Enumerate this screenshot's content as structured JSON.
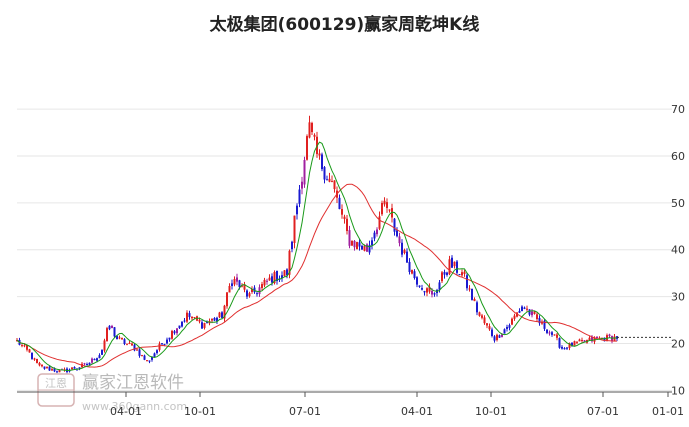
{
  "chart_data": {
    "type": "candlestick",
    "title": "太极集团(600129)赢家周乾坤K线",
    "y_axis": {
      "position": "right",
      "ticks": [
        10,
        20,
        30,
        40,
        50,
        60,
        70
      ],
      "range": [
        9,
        73
      ]
    },
    "x_axis": {
      "ticks": [
        "04-01",
        "10-01",
        "07-01",
        "04-01",
        "10-01",
        "07-01",
        "01-01"
      ]
    },
    "grid": "horizontal",
    "colors": {
      "up": "#e02020",
      "down": "#1a1ad0",
      "mixed": "#a020a0",
      "ma_short": "#1a9a1a",
      "ma_long": "#e03030",
      "reference_line": "#333333"
    },
    "reference_line": {
      "value": 21.3,
      "style": "dotted"
    },
    "price_path": [
      [
        0,
        20.5
      ],
      [
        12,
        18.0
      ],
      [
        22,
        15.0
      ],
      [
        45,
        14.0
      ],
      [
        70,
        15.5
      ],
      [
        84,
        18.0
      ],
      [
        92,
        24.0
      ],
      [
        100,
        21.0
      ],
      [
        118,
        19.0
      ],
      [
        130,
        16.0
      ],
      [
        145,
        20.0
      ],
      [
        170,
        26.0
      ],
      [
        185,
        24.0
      ],
      [
        205,
        26.0
      ],
      [
        215,
        34.0
      ],
      [
        232,
        30.0
      ],
      [
        255,
        34.0
      ],
      [
        270,
        35.0
      ],
      [
        278,
        47.0
      ],
      [
        292,
        66.0
      ],
      [
        300,
        60.0
      ],
      [
        315,
        54.0
      ],
      [
        332,
        42.0
      ],
      [
        350,
        40.0
      ],
      [
        368,
        50.0
      ],
      [
        385,
        40.0
      ],
      [
        398,
        34.0
      ],
      [
        415,
        30.0
      ],
      [
        432,
        37.0
      ],
      [
        445,
        35.0
      ],
      [
        462,
        26.0
      ],
      [
        478,
        21.0
      ],
      [
        492,
        24.0
      ],
      [
        505,
        28.0
      ],
      [
        520,
        25.0
      ],
      [
        535,
        22.0
      ],
      [
        545,
        19.0
      ],
      [
        560,
        20.0
      ],
      [
        580,
        21.0
      ],
      [
        600,
        21.3
      ]
    ]
  },
  "watermark": {
    "text": "赢家江恩软件",
    "url": "www.360gann.com",
    "stamp": "江恩"
  }
}
